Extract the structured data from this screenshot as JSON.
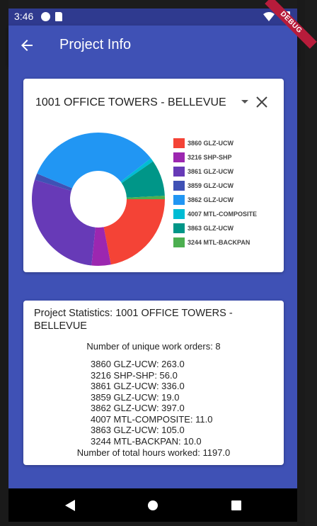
{
  "status_bar": {
    "time": "3:46"
  },
  "debug_banner": "DEBUG",
  "app_bar": {
    "title": "Project Info",
    "back_icon": "arrow-left-icon"
  },
  "project_card": {
    "selected_project": "1001 OFFICE TOWERS - BELLEVUE",
    "dropdown_icon": "caret-down-icon",
    "close_icon": "close-icon"
  },
  "chart_data": {
    "type": "pie",
    "donut": true,
    "categories": [
      "3860 GLZ-UCW",
      "3216 SHP-SHP",
      "3861 GLZ-UCW",
      "3859 GLZ-UCW",
      "3862 GLZ-UCW",
      "4007 MTL-COMPOSITE",
      "3863 GLZ-UCW",
      "3244 MTL-BACKPAN"
    ],
    "values": [
      263.0,
      56.0,
      336.0,
      19.0,
      397.0,
      11.0,
      105.0,
      10.0
    ],
    "colors": [
      "#f44336",
      "#9c27b0",
      "#673ab7",
      "#3f51b5",
      "#2196f3",
      "#00bcd4",
      "#009688",
      "#4caf50"
    ],
    "legend_position": "right"
  },
  "stats_card": {
    "title": "Project Statistics: 1001 OFFICE TOWERS - BELLEVUE",
    "unique_orders": "Number of unique work orders: 8",
    "orders": [
      "3860 GLZ-UCW: 263.0",
      "3216 SHP-SHP: 56.0",
      "3861 GLZ-UCW: 336.0",
      "3859 GLZ-UCW: 19.0",
      "3862 GLZ-UCW: 397.0",
      "4007 MTL-COMPOSITE: 11.0",
      "3863 GLZ-UCW: 105.0",
      "3244 MTL-BACKPAN: 10.0"
    ],
    "total_hours": "Number of total hours worked: 1197.0"
  }
}
